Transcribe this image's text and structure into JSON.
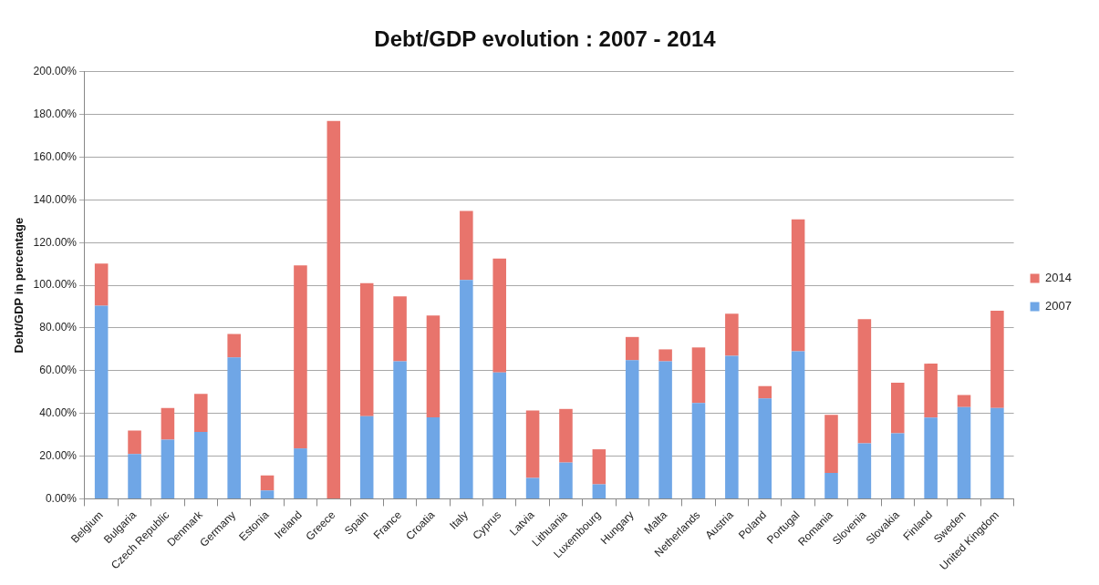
{
  "chart_data": {
    "type": "bar",
    "title": "Debt/GDP evolution : 2007 - 2014",
    "ylabel": "Debt/GDP in percentage",
    "categories": [
      "Belgium",
      "Bulgaria",
      "Czech Republic",
      "Denmark",
      "Germany",
      "Estonia",
      "Ireland",
      "Greece",
      "Spain",
      "France",
      "Croatia",
      "Italy",
      "Cyprus",
      "Latvia",
      "Lithuania",
      "Luxembourg",
      "Hungary",
      "Malta",
      "Netherlands",
      "Austria",
      "Poland",
      "Portugal",
      "Romania",
      "Slovenia",
      "Slovakia",
      "Finland",
      "Sweden",
      "United Kingdom"
    ],
    "series": [
      {
        "name": "2007",
        "color": "#6fa6e6",
        "values": [
          90.5,
          21.0,
          27.7,
          31.3,
          66.2,
          3.9,
          23.6,
          0,
          38.7,
          64.4,
          38.2,
          102.5,
          59.2,
          9.8,
          17.0,
          6.8,
          64.9,
          64.4,
          44.9,
          67.0,
          47.0,
          69.1,
          12.1,
          26.0,
          30.7,
          38.1,
          43.0,
          42.5
        ]
      },
      {
        "name": "2014",
        "color": "#e8746c",
        "values": [
          19.7,
          11.0,
          14.8,
          17.9,
          11.0,
          7.1,
          85.7,
          177.0,
          62.3,
          30.4,
          47.7,
          32.3,
          53.3,
          31.6,
          25.1,
          16.4,
          10.9,
          5.6,
          26.0,
          19.7,
          5.8,
          61.8,
          27.2,
          58.2,
          23.7,
          25.2,
          5.6,
          45.6
        ]
      }
    ],
    "stacked": true,
    "ylim": [
      0,
      200
    ],
    "yticks": [
      {
        "value": 0,
        "label": "0.00%"
      },
      {
        "value": 20,
        "label": "20.00%"
      },
      {
        "value": 40,
        "label": "40.00%"
      },
      {
        "value": 60,
        "label": "60.00%"
      },
      {
        "value": 80,
        "label": "80.00%"
      },
      {
        "value": 100,
        "label": "100.00%"
      },
      {
        "value": 120,
        "label": "120.00%"
      },
      {
        "value": 140,
        "label": "140.00%"
      },
      {
        "value": 160,
        "label": "160.00%"
      },
      {
        "value": 180,
        "label": "180.00%"
      },
      {
        "value": 200,
        "label": "200.00%"
      }
    ],
    "grid": "y",
    "legend": "right"
  }
}
